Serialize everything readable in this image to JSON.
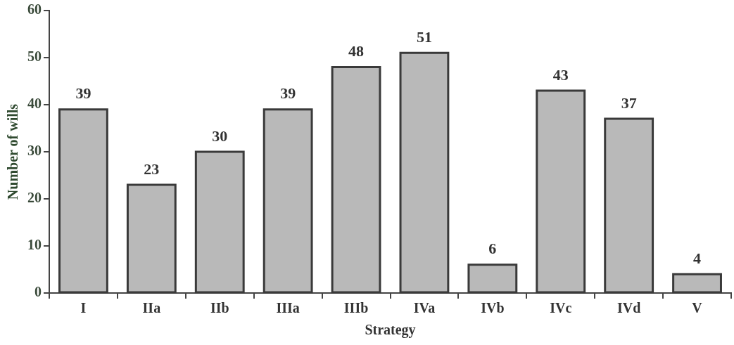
{
  "chart_data": {
    "type": "bar",
    "xlabel": "Strategy",
    "ylabel": "Number of wills",
    "categories": [
      "I",
      "IIa",
      "IIb",
      "IIIa",
      "IIIb",
      "IVa",
      "IVb",
      "IVc",
      "IVd",
      "V"
    ],
    "values": [
      39,
      23,
      30,
      39,
      48,
      51,
      6,
      43,
      37,
      4
    ],
    "color": "#b9b9b9",
    "ylim": [
      0,
      60
    ],
    "yticks": [
      0,
      10,
      20,
      30,
      40,
      50,
      60
    ],
    "data_labels": true,
    "grid": false,
    "legend": false
  }
}
